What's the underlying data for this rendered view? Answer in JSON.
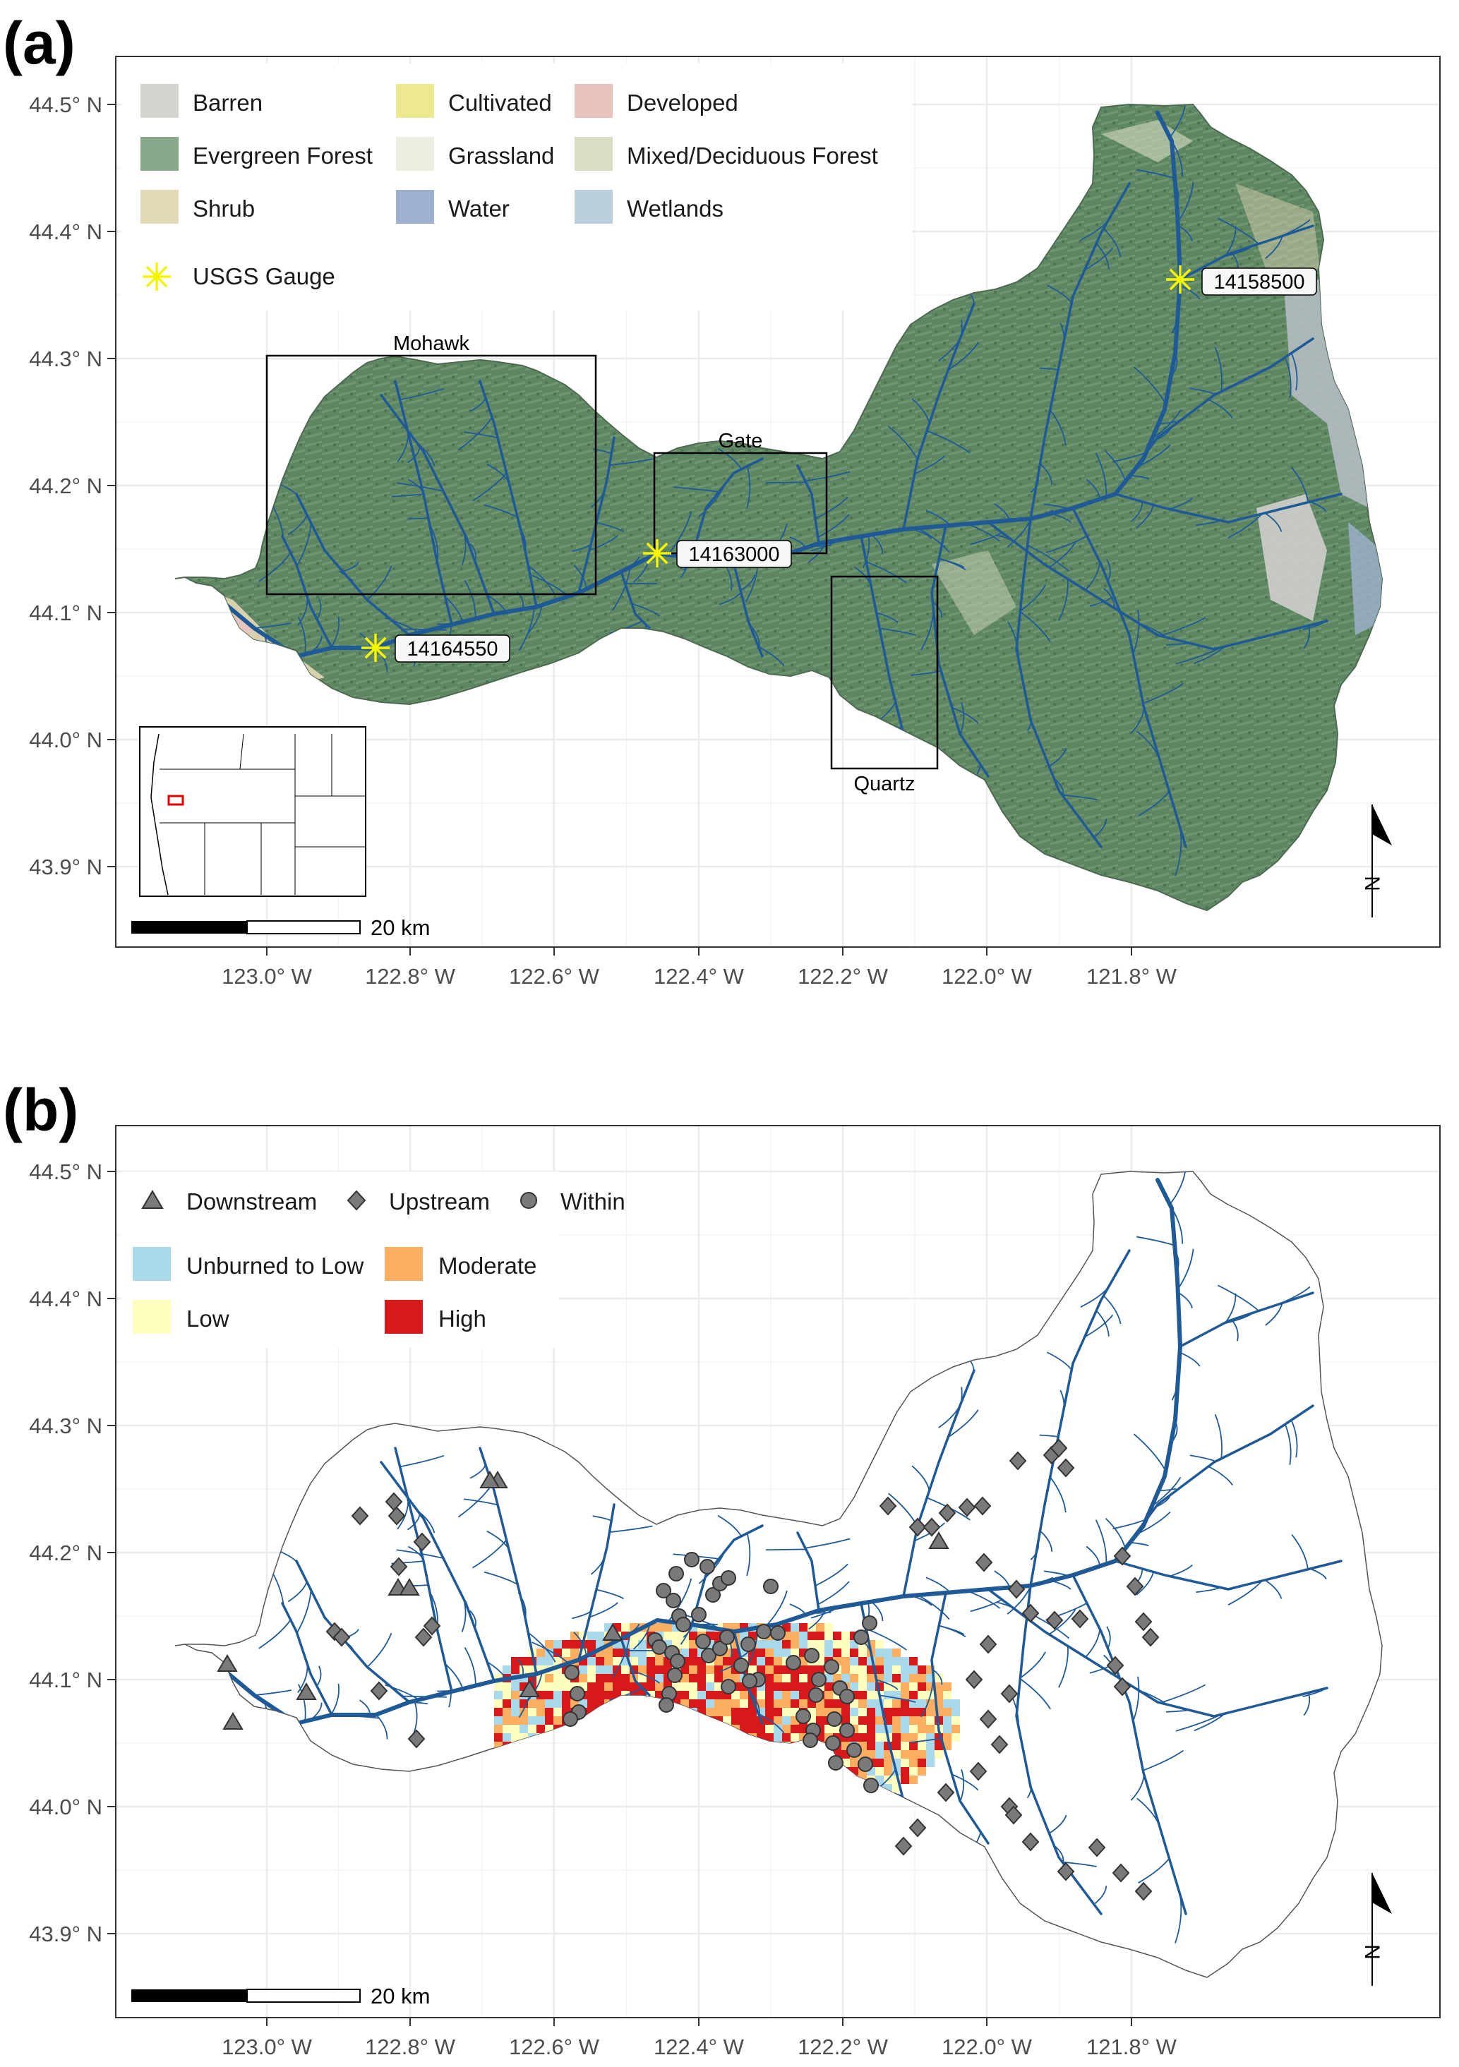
{
  "panels": {
    "a": {
      "letter": "(a)",
      "legend": {
        "land_cover": [
          {
            "label": "Barren",
            "color": "#d6d4d0"
          },
          {
            "label": "Cultivated",
            "color": "#ece98f"
          },
          {
            "label": "Developed",
            "color": "#e8c3bd"
          },
          {
            "label": "Evergreen Forest",
            "color": "#89a98b"
          },
          {
            "label": "Grassland",
            "color": "#ecece0"
          },
          {
            "label": "Mixed/Deciduous Forest",
            "color": "#d9dfc4"
          },
          {
            "label": "Shrub",
            "color": "#e4d9b7"
          },
          {
            "label": "Water",
            "color": "#9fb1cf"
          },
          {
            "label": "Wetlands",
            "color": "#bccfdd"
          }
        ],
        "gauge_label": "USGS Gauge",
        "gauge_color": "#f5f500"
      },
      "gauges": [
        "14158500",
        "14163000",
        "14164550"
      ],
      "study_areas": [
        "Mohawk",
        "Gate",
        "Quartz"
      ],
      "scale_bar": "20 km",
      "north_label": "N"
    },
    "b": {
      "letter": "(b)",
      "legend": {
        "site_types": [
          {
            "label": "Downstream",
            "shape": "triangle"
          },
          {
            "label": "Upstream",
            "shape": "diamond"
          },
          {
            "label": "Within",
            "shape": "circle"
          }
        ],
        "severity": [
          {
            "label": "Unburned to Low",
            "color": "#a8d8ea"
          },
          {
            "label": "Moderate",
            "color": "#fdae61"
          },
          {
            "label": "Low",
            "color": "#ffffbf"
          },
          {
            "label": "High",
            "color": "#d7191c"
          }
        ]
      },
      "scale_bar": "20 km",
      "north_label": "N"
    }
  },
  "axes": {
    "y_ticks": [
      "44.5° N",
      "44.4° N",
      "44.3° N",
      "44.2° N",
      "44.1° N",
      "44.0° N",
      "43.9° N"
    ],
    "x_ticks": [
      "123.0° W",
      "122.8° W",
      "122.6° W",
      "122.4° W",
      "122.2° W",
      "122.0° W",
      "121.8° W"
    ]
  },
  "colors": {
    "forest": "#5f8663",
    "stream": "#1f5a96",
    "site_marker": "#7a7a7a",
    "grid": "#ebebeb"
  }
}
